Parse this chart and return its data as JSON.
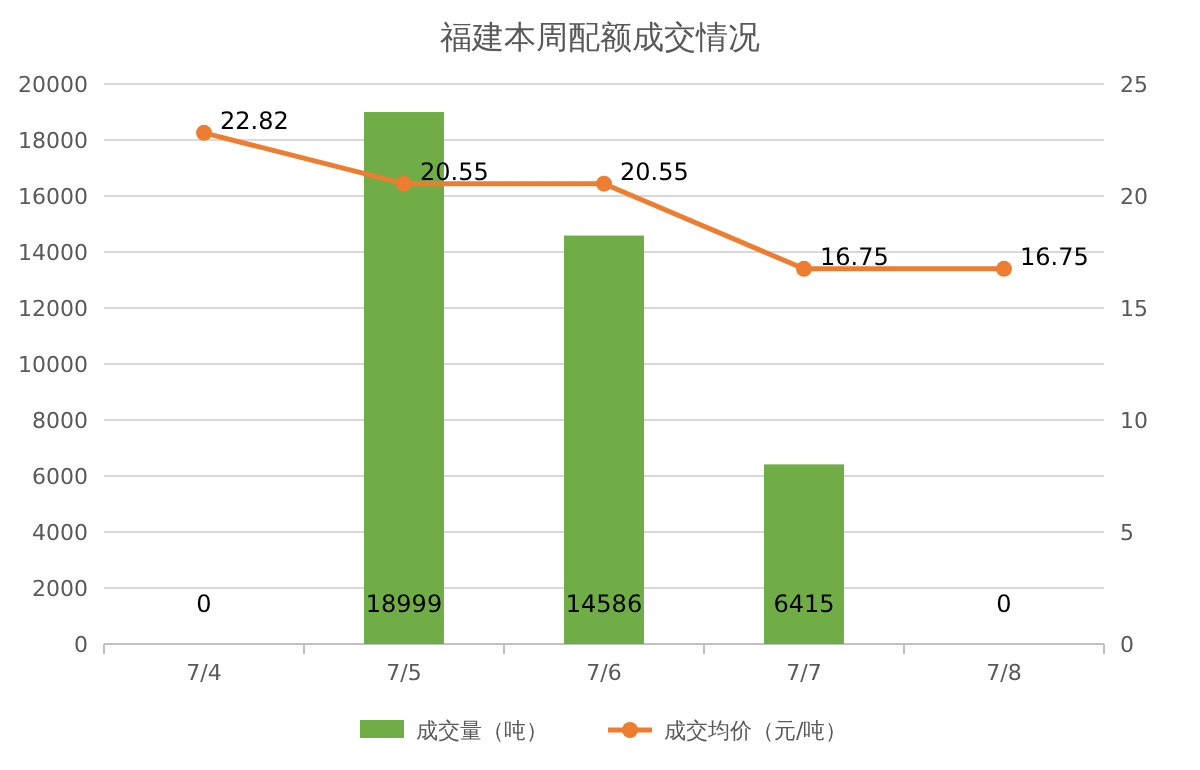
{
  "chart_data": {
    "type": "bar",
    "title": "福建本周配额成交情况",
    "categories": [
      "7/4",
      "7/5",
      "7/6",
      "7/7",
      "7/8"
    ],
    "series": [
      {
        "name": "成交量（吨）",
        "color": "#70ad47",
        "values": [
          0,
          18999,
          14586,
          6415,
          0
        ]
      },
      {
        "name": "成交均价（元/吨）",
        "type": "line",
        "axis": "y2",
        "color": "#ed7d31",
        "values": [
          22.82,
          20.55,
          20.55,
          16.75,
          16.75
        ]
      }
    ],
    "ylim": [
      0,
      20000
    ],
    "yticks": [
      0,
      2000,
      4000,
      6000,
      8000,
      10000,
      12000,
      14000,
      16000,
      18000,
      20000
    ],
    "y2lim": [
      0,
      25
    ],
    "y2ticks": [
      0,
      5,
      10,
      15,
      20,
      25
    ],
    "grid": "y",
    "legend": "bottom",
    "marker": "circle",
    "data_labels": true
  }
}
